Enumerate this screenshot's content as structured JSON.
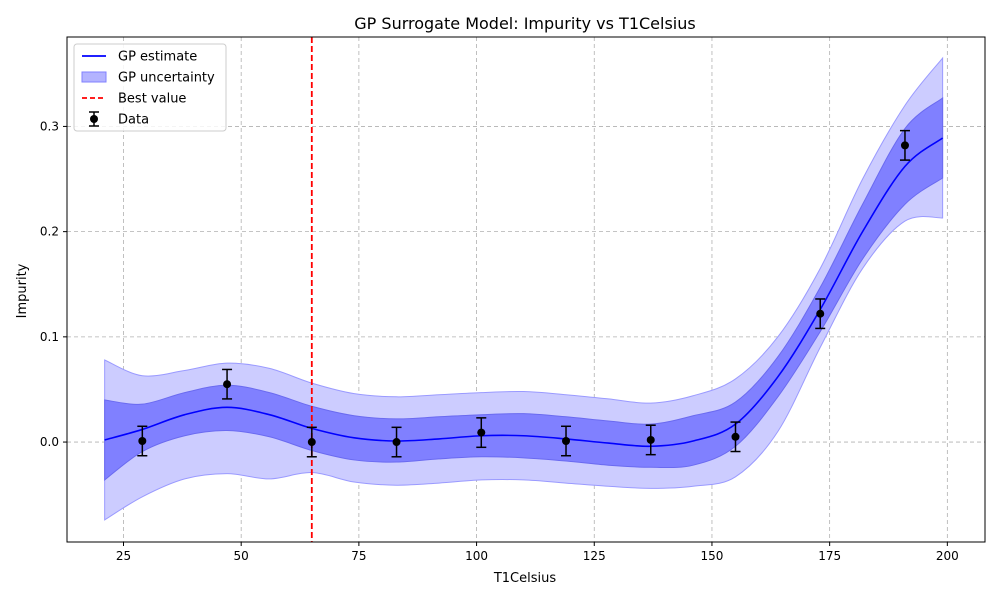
{
  "chart_data": {
    "type": "line",
    "title": "GP Surrogate Model: Impurity vs T1Celsius",
    "xlabel": "T1Celsius",
    "ylabel": "Impurity",
    "xlim": [
      13,
      208
    ],
    "ylim": [
      -0.095,
      0.385
    ],
    "xticks": [
      25,
      50,
      75,
      100,
      125,
      150,
      175,
      200
    ],
    "yticks": [
      0.0,
      0.1,
      0.2,
      0.3
    ],
    "ytick_labels": [
      "0.0",
      "0.1",
      "0.2",
      "0.3"
    ],
    "grid": true,
    "legend_position": "top-left",
    "best_value_x": 65,
    "series": [
      {
        "name": "GP estimate",
        "x": [
          21,
          29,
          38,
          47,
          56,
          65,
          74,
          83,
          92,
          101,
          110,
          119,
          128,
          137,
          146,
          155,
          164,
          173,
          182,
          191,
          199
        ],
        "values": [
          0.002,
          0.012,
          0.026,
          0.033,
          0.026,
          0.013,
          0.004,
          0.001,
          0.003,
          0.006,
          0.006,
          0.003,
          -0.001,
          -0.004,
          0.001,
          0.017,
          0.062,
          0.126,
          0.2,
          0.262,
          0.289
        ]
      },
      {
        "name": "GP uncertainty",
        "x": [
          21,
          29,
          38,
          47,
          56,
          65,
          74,
          83,
          92,
          101,
          110,
          119,
          128,
          137,
          146,
          155,
          164,
          173,
          182,
          191,
          199
        ],
        "lower_1sd": [
          -0.036,
          -0.009,
          0.006,
          0.011,
          0.005,
          -0.008,
          -0.017,
          -0.019,
          -0.016,
          -0.014,
          -0.015,
          -0.018,
          -0.022,
          -0.024,
          -0.022,
          -0.004,
          0.043,
          0.105,
          0.174,
          0.226,
          0.251
        ],
        "upper_1sd": [
          0.04,
          0.036,
          0.047,
          0.054,
          0.047,
          0.034,
          0.025,
          0.022,
          0.024,
          0.026,
          0.027,
          0.024,
          0.02,
          0.017,
          0.025,
          0.038,
          0.081,
          0.147,
          0.226,
          0.298,
          0.327
        ],
        "lower_2sd": [
          -0.074,
          -0.052,
          -0.035,
          -0.03,
          -0.035,
          -0.029,
          -0.038,
          -0.041,
          -0.039,
          -0.036,
          -0.036,
          -0.039,
          -0.042,
          -0.044,
          -0.042,
          -0.033,
          0.01,
          0.09,
          0.165,
          0.21,
          0.213
        ],
        "upper_2sd": [
          0.078,
          0.063,
          0.068,
          0.075,
          0.07,
          0.056,
          0.046,
          0.043,
          0.045,
          0.047,
          0.048,
          0.045,
          0.041,
          0.037,
          0.044,
          0.06,
          0.1,
          0.165,
          0.25,
          0.32,
          0.365
        ]
      },
      {
        "name": "Best value",
        "x": [
          65,
          65
        ],
        "values": [
          -0.095,
          0.385
        ]
      },
      {
        "name": "Data",
        "x": [
          29,
          47,
          65,
          83,
          101,
          119,
          137,
          155,
          173,
          191
        ],
        "values": [
          0.001,
          0.055,
          0.0,
          0.0,
          0.009,
          0.001,
          0.002,
          0.005,
          0.122,
          0.282
        ],
        "error": [
          0.014,
          0.014,
          0.014,
          0.014,
          0.014,
          0.014,
          0.014,
          0.014,
          0.014,
          0.014
        ]
      }
    ]
  },
  "colors": {
    "estimate": "#0000ff",
    "band_inner": "#8080ff",
    "band_outer": "#ccccff",
    "best_value": "#ff0000",
    "data": "#000000"
  }
}
